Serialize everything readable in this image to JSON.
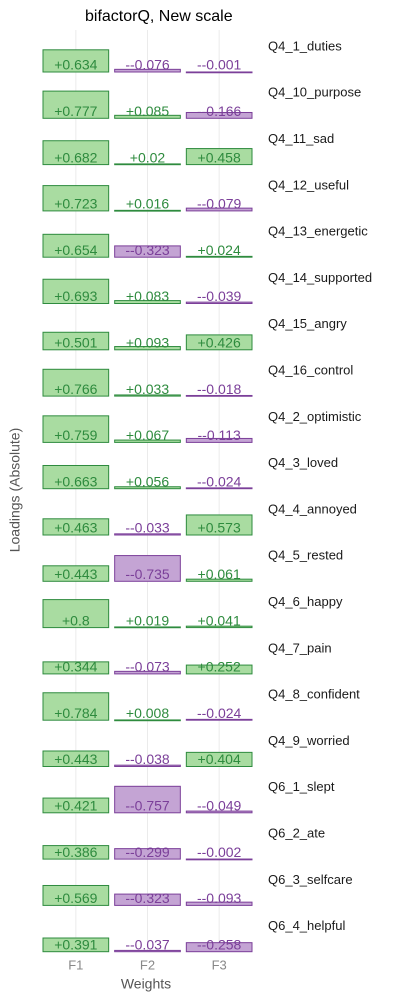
{
  "chart_data": {
    "type": "bar",
    "title": "bifactorQ, New scale",
    "x_label": "Weights",
    "y_label": "Loadings (Absolute)",
    "categories": [
      "F1",
      "F2",
      "F3"
    ],
    "ylim": [
      0,
      1
    ],
    "positive_color": "#a9dca1",
    "positive_edge": "#2e8b3e",
    "negative_color": "#c4a4d4",
    "negative_edge": "#7b3f99",
    "grid": true,
    "series": [
      {
        "name": "Q4_1_duties",
        "values": [
          0.634,
          -0.076,
          -0.001
        ],
        "value_labels": [
          "+0.634",
          "--0.076",
          "--0.001"
        ]
      },
      {
        "name": "Q4_10_purpose",
        "values": [
          0.777,
          0.085,
          -0.166
        ],
        "value_labels": [
          "+0.777",
          "+0.085",
          "--0.166"
        ]
      },
      {
        "name": "Q4_11_sad",
        "values": [
          0.682,
          0.02,
          0.458
        ],
        "value_labels": [
          "+0.682",
          "+0.02",
          "+0.458"
        ]
      },
      {
        "name": "Q4_12_useful",
        "values": [
          0.723,
          0.016,
          -0.079
        ],
        "value_labels": [
          "+0.723",
          "+0.016",
          "--0.079"
        ]
      },
      {
        "name": "Q4_13_energetic",
        "values": [
          0.654,
          -0.323,
          0.024
        ],
        "value_labels": [
          "+0.654",
          "--0.323",
          "+0.024"
        ]
      },
      {
        "name": "Q4_14_supported",
        "values": [
          0.693,
          0.083,
          -0.039
        ],
        "value_labels": [
          "+0.693",
          "+0.083",
          "--0.039"
        ]
      },
      {
        "name": "Q4_15_angry",
        "values": [
          0.501,
          0.093,
          0.426
        ],
        "value_labels": [
          "+0.501",
          "+0.093",
          "+0.426"
        ]
      },
      {
        "name": "Q4_16_control",
        "values": [
          0.766,
          0.033,
          -0.018
        ],
        "value_labels": [
          "+0.766",
          "+0.033",
          "--0.018"
        ]
      },
      {
        "name": "Q4_2_optimistic",
        "values": [
          0.759,
          0.067,
          -0.113
        ],
        "value_labels": [
          "+0.759",
          "+0.067",
          "--0.113"
        ]
      },
      {
        "name": "Q4_3_loved",
        "values": [
          0.663,
          0.056,
          -0.024
        ],
        "value_labels": [
          "+0.663",
          "+0.056",
          "--0.024"
        ]
      },
      {
        "name": "Q4_4_annoyed",
        "values": [
          0.463,
          -0.033,
          0.573
        ],
        "value_labels": [
          "+0.463",
          "--0.033",
          "+0.573"
        ]
      },
      {
        "name": "Q4_5_rested",
        "values": [
          0.443,
          -0.735,
          0.061
        ],
        "value_labels": [
          "+0.443",
          "--0.735",
          "+0.061"
        ]
      },
      {
        "name": "Q4_6_happy",
        "values": [
          0.8,
          0.019,
          0.041
        ],
        "value_labels": [
          "+0.8",
          "+0.019",
          "+0.041"
        ]
      },
      {
        "name": "Q4_7_pain",
        "values": [
          0.344,
          -0.073,
          0.252
        ],
        "value_labels": [
          "+0.344",
          "--0.073",
          "+0.252"
        ]
      },
      {
        "name": "Q4_8_confident",
        "values": [
          0.784,
          0.008,
          -0.024
        ],
        "value_labels": [
          "+0.784",
          "+0.008",
          "--0.024"
        ]
      },
      {
        "name": "Q4_9_worried",
        "values": [
          0.443,
          -0.038,
          0.404
        ],
        "value_labels": [
          "+0.443",
          "--0.038",
          "+0.404"
        ]
      },
      {
        "name": "Q6_1_slept",
        "values": [
          0.421,
          -0.757,
          -0.049
        ],
        "value_labels": [
          "+0.421",
          "--0.757",
          "--0.049"
        ]
      },
      {
        "name": "Q6_2_ate",
        "values": [
          0.386,
          -0.299,
          -0.002
        ],
        "value_labels": [
          "+0.386",
          "--0.299",
          "--0.002"
        ]
      },
      {
        "name": "Q6_3_selfcare",
        "values": [
          0.569,
          -0.323,
          -0.093
        ],
        "value_labels": [
          "+0.569",
          "--0.323",
          "--0.093"
        ]
      },
      {
        "name": "Q6_4_helpful",
        "values": [
          0.391,
          -0.037,
          -0.258
        ],
        "value_labels": [
          "+0.391",
          "--0.037",
          "--0.258"
        ]
      }
    ]
  }
}
